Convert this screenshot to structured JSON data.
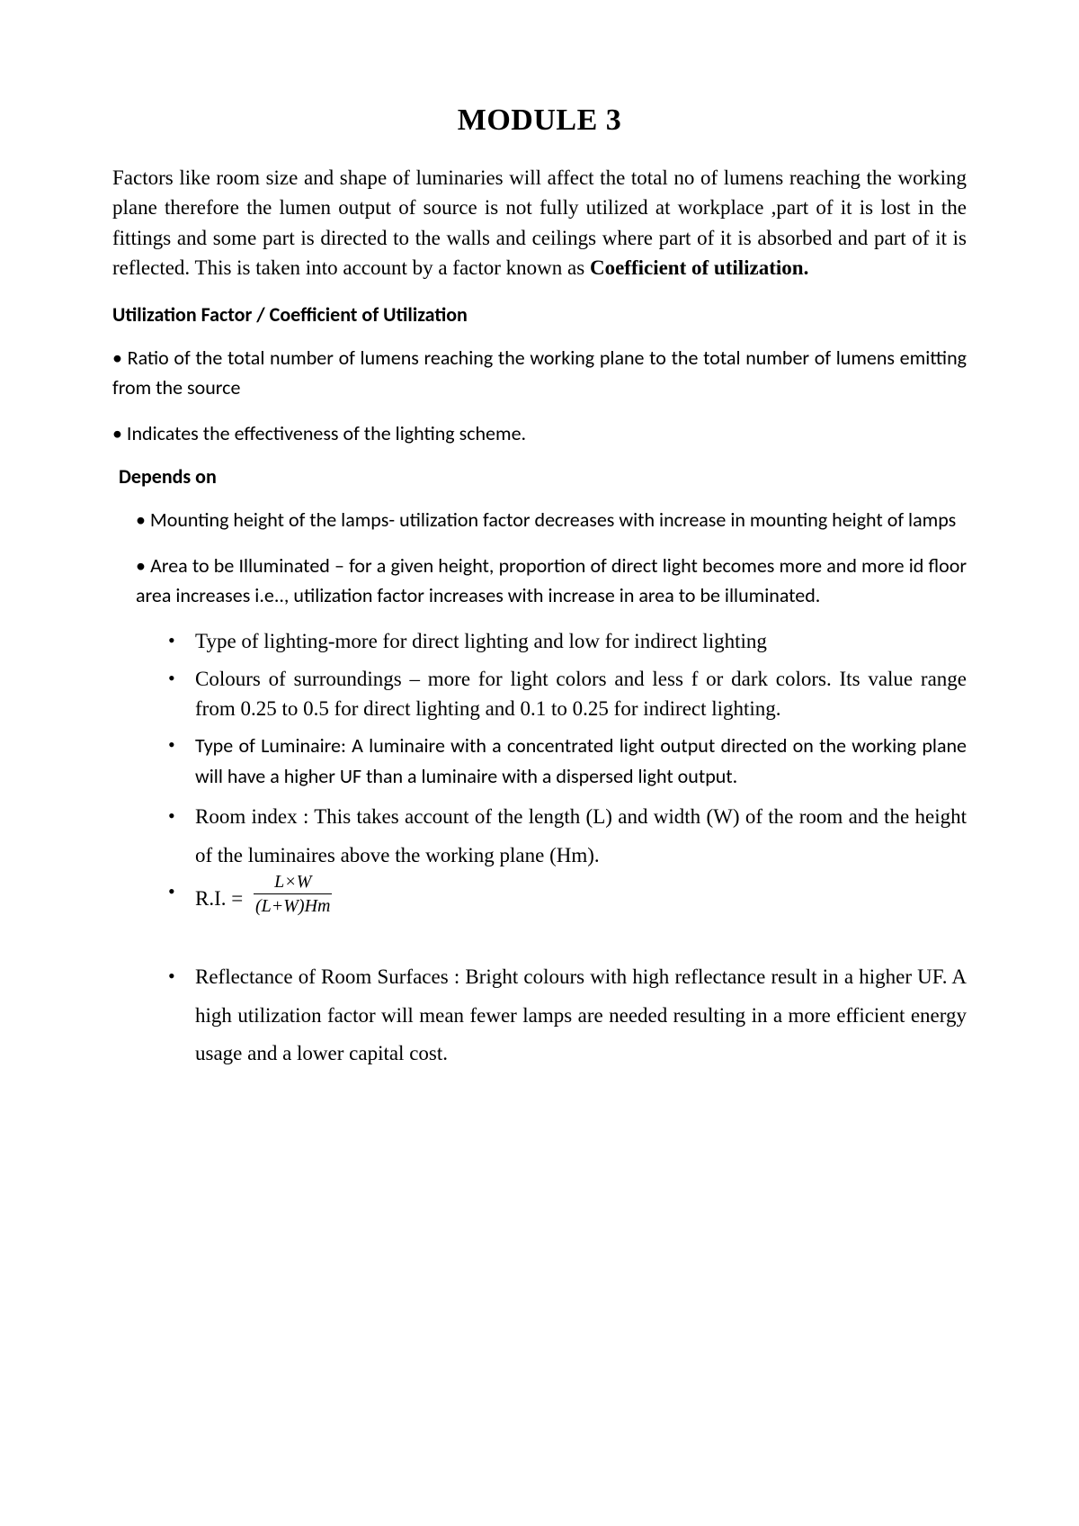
{
  "title": "MODULE 3",
  "intro_text": "Factors like room size and shape of luminaries will affect the total no of lumens reaching the working plane therefore the lumen output of source is not fully utilized at workplace ,part of it is lost in the fittings and some part is directed to the walls and ceilings where part of it is absorbed and part of it is reflected. This is taken into account by a factor known as ",
  "intro_bold": "Coefficient of utilization.",
  "heading1": "Utilization Factor / Coefficient of Utilization",
  "bullet1": "• Ratio of the total number of lumens reaching the working plane to the total number of lumens emitting from the source",
  "bullet2": "• Indicates the effectiveness of the lighting scheme.",
  "heading2": "Depends on",
  "indent1": " • Mounting height of the lamps- utilization factor decreases with increase in mounting height of lamps",
  "indent2": "• Area to be Illuminated – for a given height, proportion of direct light becomes more and more id floor area increases i.e.., utilization factor increases with increase in area to be illuminated.",
  "li1": "Type of lighting-more for direct lighting and low for indirect lighting",
  "li2": "Colours of surroundings – more for light colors and less f or dark colors. Its value range from 0.25 to 0.5 for direct lighting and 0.1 to 0.25 for indirect lighting.",
  "li3a": "Type of Luminaire",
  "li3b": ": A luminaire with a concentrated light output directed on the working plane will have a higher UF than a luminaire with a dispersed light output.",
  "li4": " Room index : This takes account of the length (L) and width (W) of the room and the height of the luminaires above the working plane (Hm).",
  "formula_lhs": "R.I. = ",
  "formula_num": "L×W",
  "formula_den": "(L+W)Hm",
  "li6a": "Reflectance of Room Surfaces ",
  "li6b": ": Bright colours with high reflectance result in a higher UF. A high utilization factor will mean fewer lamps are needed resulting in a more efficient energy usage and a lower capital cost."
}
